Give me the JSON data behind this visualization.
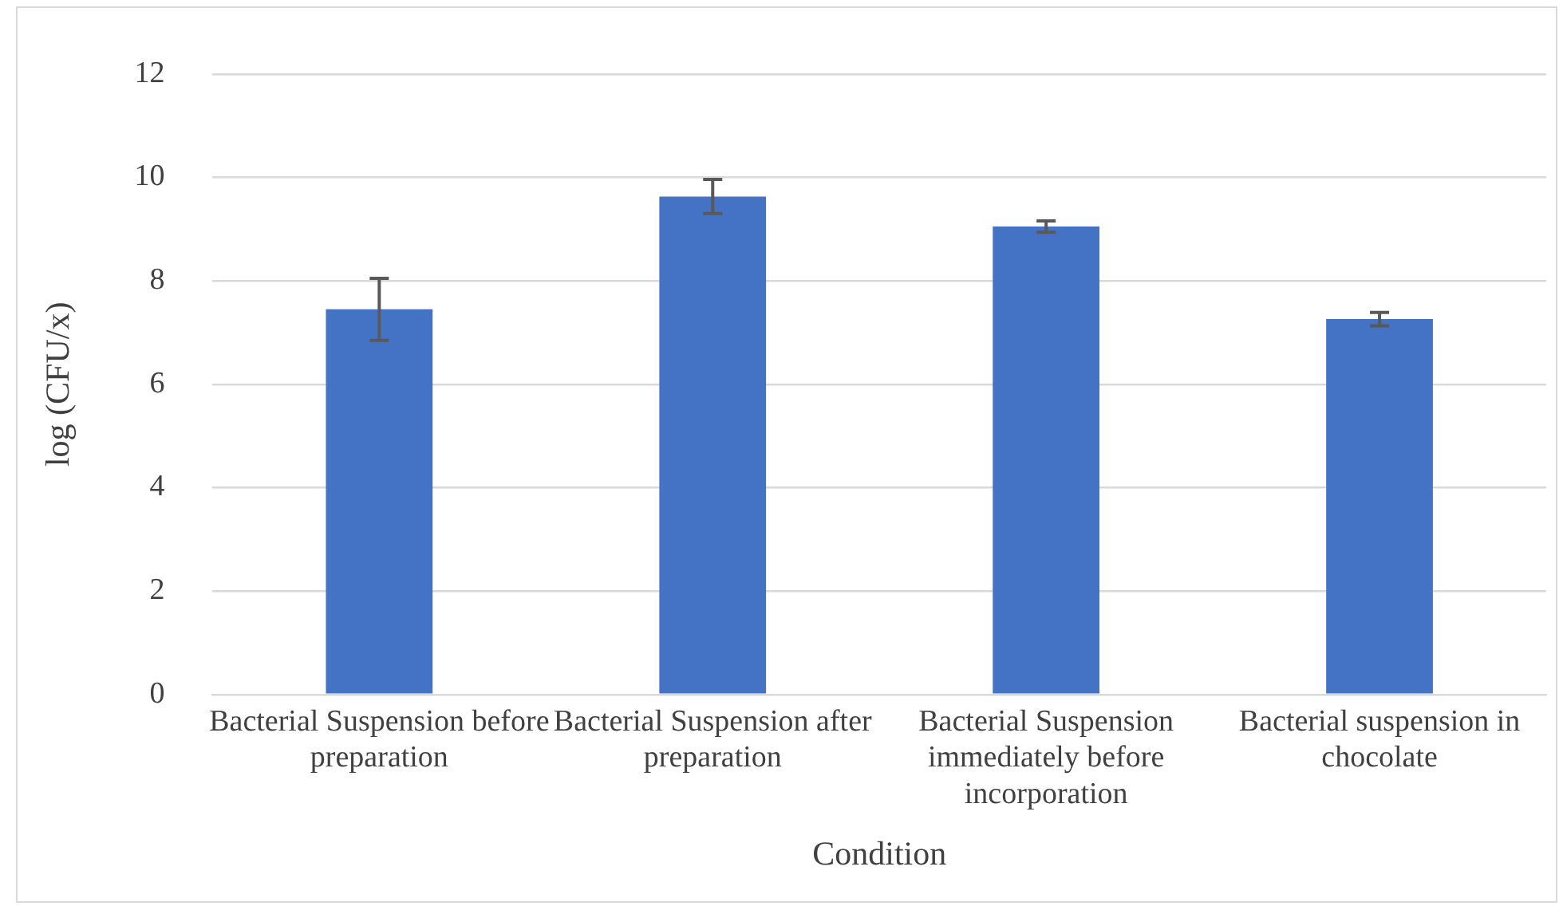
{
  "chart_data": {
    "type": "bar",
    "xlabel": "Condition",
    "ylabel": "log (CFU/x)",
    "categories": [
      "Bacterial Suspension before preparation",
      "Bacterial Suspension after preparation",
      "Bacterial Suspension immediately before incorporation",
      "Bacterial suspension in chocolate"
    ],
    "values": [
      7.45,
      9.63,
      9.05,
      7.26
    ],
    "errors": [
      0.6,
      0.33,
      0.11,
      0.13
    ],
    "color": "#4472c4",
    "ylim": [
      0,
      12
    ],
    "yticks": [
      0,
      2,
      4,
      6,
      8,
      10,
      12
    ],
    "grid": "y",
    "legend": false
  }
}
